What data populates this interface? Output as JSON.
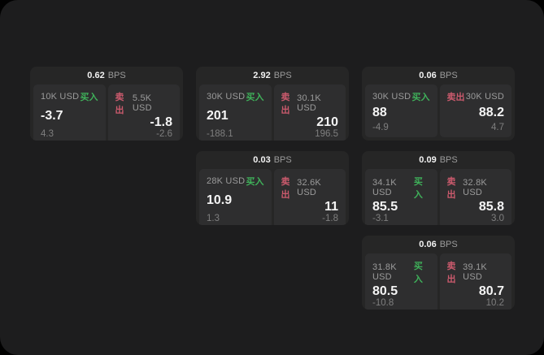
{
  "labels": {
    "bps_unit": "BPS",
    "buy": "买入",
    "sell": "卖出"
  },
  "colors": {
    "buy_green": "#3fb15a",
    "sell_red": "#cb5a6d",
    "panel_bg": "#1d1d1e",
    "card_bg": "#262626",
    "side_bg": "#2e2e2f"
  },
  "cards": [
    {
      "row": 1,
      "col": 1,
      "bps": "0.62",
      "buy": {
        "amount": "10K USD",
        "price": "-3.7",
        "delta": "4.3"
      },
      "sell": {
        "amount": "5.5K USD",
        "price": "-1.8",
        "delta": "-2.6"
      }
    },
    {
      "row": 1,
      "col": 2,
      "bps": "2.92",
      "buy": {
        "amount": "30K USD",
        "price": "201",
        "delta": "-188.1"
      },
      "sell": {
        "amount": "30.1K USD",
        "price": "210",
        "delta": "196.5"
      }
    },
    {
      "row": 1,
      "col": 3,
      "bps": "0.06",
      "buy": {
        "amount": "30K USD",
        "price": "88",
        "delta": "-4.9"
      },
      "sell": {
        "amount": "30K USD",
        "price": "88.2",
        "delta": "4.7"
      }
    },
    {
      "row": 2,
      "col": 2,
      "bps": "0.03",
      "buy": {
        "amount": "28K USD",
        "price": "10.9",
        "delta": "1.3"
      },
      "sell": {
        "amount": "32.6K USD",
        "price": "11",
        "delta": "-1.8"
      }
    },
    {
      "row": 2,
      "col": 3,
      "bps": "0.09",
      "buy": {
        "amount": "34.1K USD",
        "price": "85.5",
        "delta": "-3.1"
      },
      "sell": {
        "amount": "32.8K USD",
        "price": "85.8",
        "delta": "3.0"
      }
    },
    {
      "row": 3,
      "col": 3,
      "bps": "0.06",
      "buy": {
        "amount": "31.8K USD",
        "price": "80.5",
        "delta": "-10.8"
      },
      "sell": {
        "amount": "39.1K USD",
        "price": "80.7",
        "delta": "10.2"
      }
    }
  ]
}
